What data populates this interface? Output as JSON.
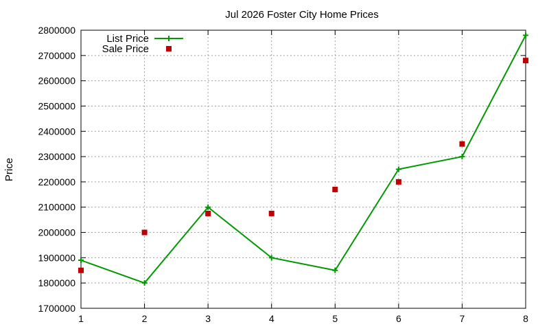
{
  "chart_data": {
    "type": "line",
    "title": "Jul 2026 Foster City Home Prices",
    "xlabel": "",
    "ylabel": "Price",
    "x": [
      1,
      2,
      3,
      4,
      5,
      6,
      7,
      8
    ],
    "xlim": [
      1,
      8
    ],
    "ylim": [
      1700000,
      2800000
    ],
    "yticks": [
      1700000,
      1800000,
      1900000,
      2000000,
      2100000,
      2200000,
      2300000,
      2400000,
      2500000,
      2600000,
      2700000,
      2800000
    ],
    "grid": true,
    "legend_position": "top-left",
    "series": [
      {
        "name": "List Price",
        "style": "line-with-plus-markers",
        "color": "#009900",
        "values": [
          1890000,
          1800000,
          2100000,
          1900000,
          1850000,
          2250000,
          2300000,
          2780000
        ]
      },
      {
        "name": "Sale Price",
        "style": "square-points",
        "color": "#c00000",
        "values": [
          1850000,
          2000000,
          2075000,
          2075000,
          2170000,
          2200000,
          2350000,
          2680000
        ]
      }
    ]
  }
}
